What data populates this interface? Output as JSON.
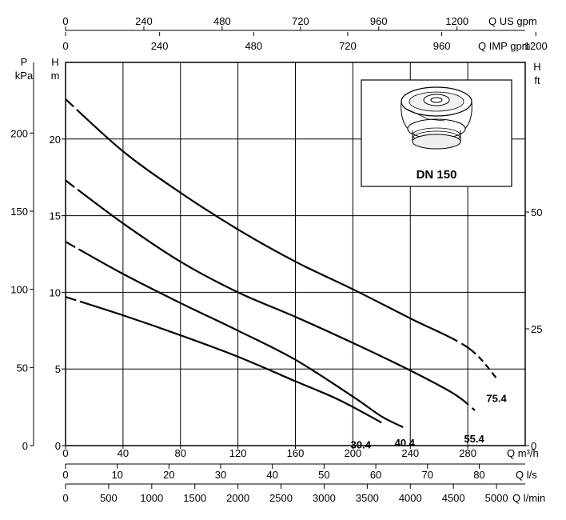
{
  "chart_data": {
    "type": "line",
    "title": "",
    "series": [
      {
        "name": "75.4",
        "x": [
          0,
          40,
          80,
          120,
          160,
          200,
          240,
          280,
          300
        ],
        "y": [
          22.6,
          19.2,
          16.5,
          14.1,
          12.0,
          10.2,
          8.3,
          6.4,
          4.4
        ]
      },
      {
        "name": "55.4",
        "x": [
          0,
          40,
          80,
          120,
          160,
          200,
          240,
          270,
          285
        ],
        "y": [
          17.3,
          14.5,
          12.0,
          10.0,
          8.4,
          6.7,
          4.9,
          3.4,
          2.3
        ]
      },
      {
        "name": "40.4",
        "x": [
          0,
          40,
          80,
          120,
          160,
          200,
          220,
          235
        ],
        "y": [
          13.3,
          11.2,
          9.3,
          7.5,
          5.6,
          3.2,
          1.9,
          1.2
        ]
      },
      {
        "name": "30.4",
        "x": [
          0,
          40,
          80,
          120,
          160,
          190,
          220
        ],
        "y": [
          9.7,
          8.5,
          7.2,
          5.8,
          4.2,
          3.0,
          1.5
        ]
      }
    ],
    "axes": {
      "q_m3h": {
        "label": "Q m³/h",
        "ticks": [
          "0",
          "40",
          "80",
          "120",
          "160",
          "200",
          "240",
          "280"
        ],
        "range": [
          0,
          320
        ]
      },
      "q_ls": {
        "label": "Q l/s",
        "ticks": [
          "0",
          "10",
          "20",
          "30",
          "40",
          "50",
          "60",
          "70",
          "80"
        ]
      },
      "q_lmin": {
        "label": "Q l/min",
        "ticks": [
          "0",
          "500",
          "1000",
          "1500",
          "2000",
          "2500",
          "3000",
          "3500",
          "4000",
          "4500",
          "5000"
        ]
      },
      "q_usgpm": {
        "label": "Q US gpm",
        "ticks": [
          "0",
          "240",
          "480",
          "720",
          "960",
          "1200"
        ]
      },
      "q_impgpm": {
        "label": "Q IMP gpm",
        "ticks": [
          "0",
          "240",
          "480",
          "720",
          "960",
          "1200"
        ]
      },
      "h_m": {
        "label_symbol": "H",
        "label_unit": "m",
        "ticks": [
          "0",
          "5",
          "10",
          "15",
          "20"
        ],
        "range": [
          0,
          25
        ]
      },
      "p_kpa": {
        "label_symbol": "P",
        "label_unit": "kPa",
        "ticks": [
          "0",
          "50",
          "100",
          "150",
          "200"
        ]
      },
      "h_ft": {
        "label_symbol": "H",
        "label_unit": "ft",
        "ticks": [
          "0",
          "25",
          "50"
        ]
      }
    },
    "inset_label": "DN 150",
    "grid": true
  }
}
